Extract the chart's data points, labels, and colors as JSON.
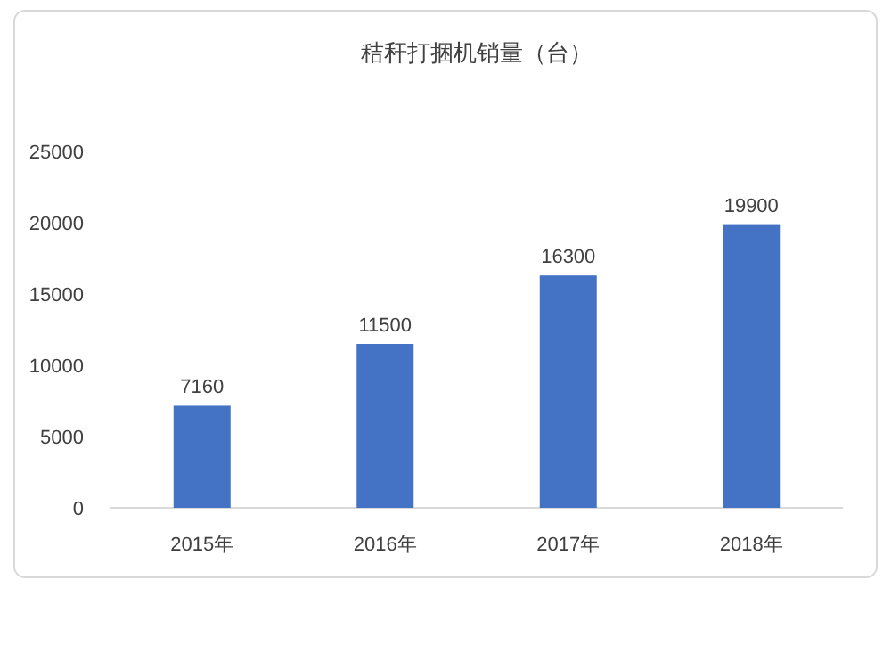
{
  "chart_data": {
    "type": "bar",
    "title": "秸秆打捆机销量（台）",
    "categories": [
      "2015年",
      "2016年",
      "2017年",
      "2018年"
    ],
    "values": [
      7160,
      11500,
      16300,
      19900
    ],
    "color": "#4472c4",
    "ylim": [
      0,
      25000
    ],
    "yticks": [
      0,
      5000,
      10000,
      15000,
      20000,
      25000
    ],
    "grid": false,
    "data_labels": true
  }
}
